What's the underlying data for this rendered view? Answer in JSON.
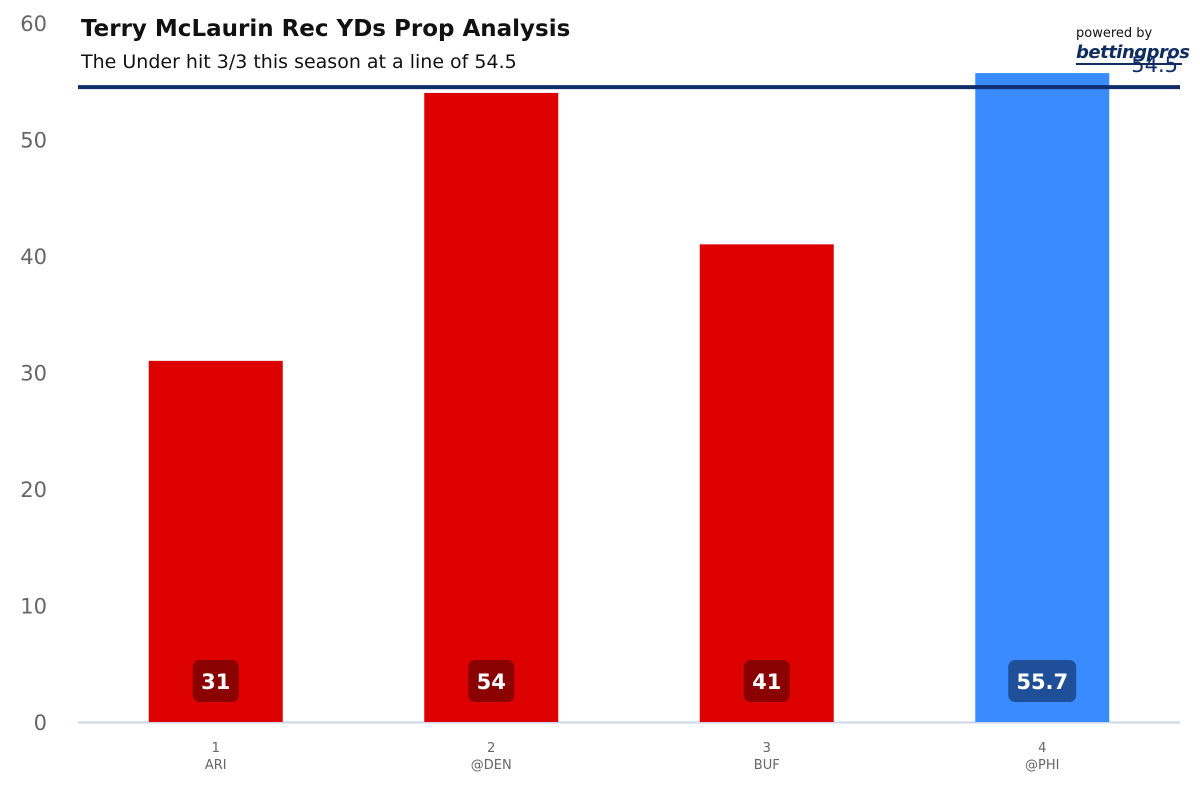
{
  "header": {
    "title": "Terry McLaurin Rec YDs Prop Analysis",
    "subtitle": "The Under hit 3/3 this season at a line of 54.5"
  },
  "brand": {
    "powered_by": "powered by",
    "logo_text": "bettingpros"
  },
  "colors": {
    "under": "#dd0000",
    "projection": "#3a8bff",
    "under_label_bg": "#8b0000",
    "projection_label_bg": "#1f4f99",
    "line": "#0f2d6b",
    "axis": "#ccd6eb",
    "tick_text": "#666666"
  },
  "chart_data": {
    "type": "bar",
    "title": "Terry McLaurin Rec YDs Prop Analysis",
    "subtitle": "The Under hit 3/3 this season at a line of 54.5",
    "categories": [
      {
        "week": "1",
        "opponent": "ARI"
      },
      {
        "week": "2",
        "opponent": "@DEN"
      },
      {
        "week": "3",
        "opponent": "BUF"
      },
      {
        "week": "4",
        "opponent": "@PHI"
      }
    ],
    "values": [
      31,
      54,
      41,
      55.7
    ],
    "data_labels": [
      "31",
      "54",
      "41",
      "55.7"
    ],
    "bar_kind": [
      "under",
      "under",
      "under",
      "projection"
    ],
    "ylim": [
      0,
      60
    ],
    "yticks": [
      0,
      10,
      20,
      30,
      40,
      50,
      60
    ],
    "line": {
      "value": 54.5,
      "label": "54.5"
    },
    "grid": false,
    "legend": "none"
  }
}
